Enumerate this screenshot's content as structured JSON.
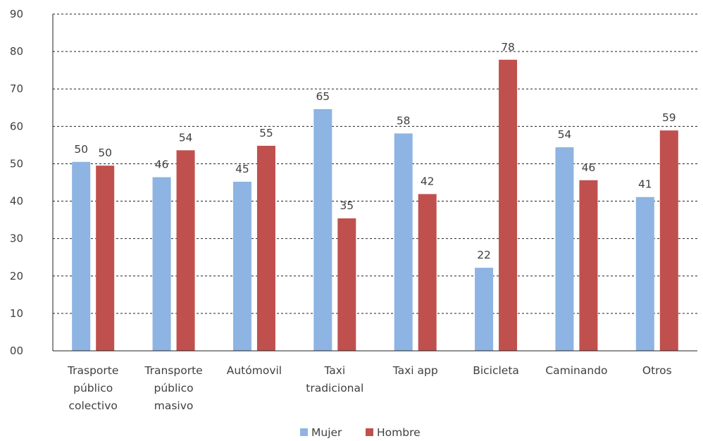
{
  "chart_data": {
    "type": "bar",
    "categories": [
      [
        "Trasporte",
        "público",
        "colectivo"
      ],
      [
        "Transporte",
        "público",
        "masivo"
      ],
      [
        "Autómovil"
      ],
      [
        "Taxi",
        "tradicional"
      ],
      [
        "Taxi app"
      ],
      [
        "Bicicleta"
      ],
      [
        "Caminando"
      ],
      [
        "Otros"
      ]
    ],
    "series": [
      {
        "name": "Mujer",
        "color": "#8DB4E2",
        "values": [
          50.5,
          46.4,
          45.2,
          64.6,
          58.1,
          22.2,
          54.4,
          41.1
        ],
        "labels": [
          "50",
          "46",
          "45",
          "65",
          "58",
          "22",
          "54",
          "41"
        ]
      },
      {
        "name": "Hombre",
        "color": "#C0504D",
        "values": [
          49.5,
          53.6,
          54.8,
          35.4,
          41.9,
          77.8,
          45.6,
          58.9
        ],
        "labels": [
          "50",
          "54",
          "55",
          "35",
          "42",
          "78",
          "46",
          "59"
        ]
      }
    ],
    "ylim": [
      0,
      90
    ],
    "yticks": [
      "00",
      "10",
      "20",
      "30",
      "40",
      "50",
      "60",
      "70",
      "80",
      "90"
    ],
    "grid": "dashed",
    "legend_position": "bottom"
  }
}
